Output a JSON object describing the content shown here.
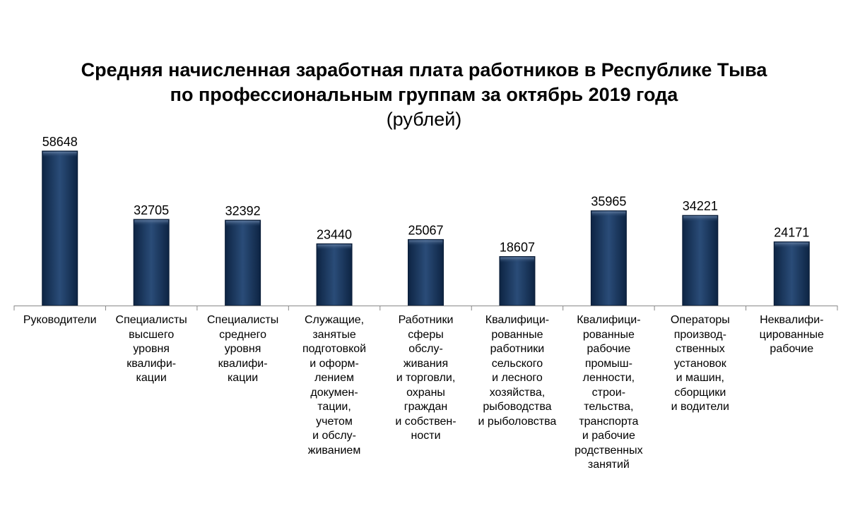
{
  "chart_data": {
    "type": "bar",
    "title_lines": [
      "Средняя начисленная заработная плата работников в Республике Тыва",
      "по профессиональным группам за октябрь 2019 года"
    ],
    "subtitle": "(рублей)",
    "xlabel": "",
    "ylabel": "",
    "grid": false,
    "legend": "none",
    "ylim": [
      0,
      58648
    ],
    "bar_color": "#1b3a63",
    "categories": [
      [
        "Руководители"
      ],
      [
        "Специалисты",
        "высшего",
        "уровня",
        "квалифи-",
        "кации"
      ],
      [
        "Специалисты",
        "среднего",
        "уровня",
        "квалифи-",
        "кации"
      ],
      [
        "Служащие,",
        "занятые",
        "подготовкой",
        "и оформ-",
        "лением",
        "докумен-",
        "тации,",
        "учетом",
        "и обслу-",
        "живанием"
      ],
      [
        "Работники",
        "сферы",
        "обслу-",
        "живания",
        "и торговли,",
        "охраны",
        "граждан",
        "и собствен-",
        "ности"
      ],
      [
        "Квалифици-",
        "рованные",
        "работники",
        "сельского",
        "и лесного",
        "хозяйства,",
        "рыбоводства",
        "и рыболовства"
      ],
      [
        "Квалифици-",
        "рованные",
        "рабочие",
        "промыш-",
        "ленности,",
        "строи-",
        "тельства,",
        "транспорта",
        "и рабочие",
        "родственных",
        "занятий"
      ],
      [
        "Операторы",
        "производ-",
        "ственных",
        "установок",
        "и машин,",
        "сборщики",
        "и водители"
      ],
      [
        "Неквалифи-",
        "цированные",
        "рабочие"
      ]
    ],
    "values": [
      58648,
      32705,
      32392,
      23440,
      25067,
      18607,
      35965,
      34221,
      24171
    ]
  }
}
